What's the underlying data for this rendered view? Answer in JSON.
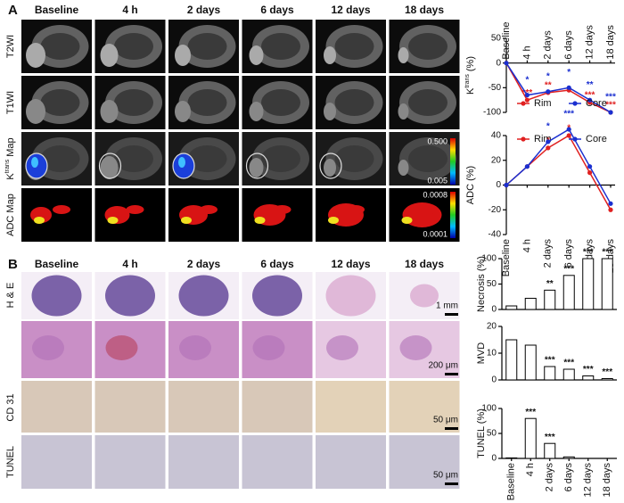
{
  "figure": {
    "panel_a": {
      "letter": "A",
      "columns": [
        "Baseline",
        "4 h",
        "2 days",
        "6 days",
        "12 days",
        "18 days"
      ],
      "rows": [
        {
          "label": "T2WI"
        },
        {
          "label": "T1WI"
        },
        {
          "label": "K",
          "sup": "trans",
          "suffix": "Map"
        },
        {
          "label": "ADC Map"
        }
      ],
      "colorbars": [
        {
          "max": "0.500",
          "min": "0.005"
        },
        {
          "max": "0.0008",
          "min": "0.0001"
        }
      ]
    },
    "panel_b": {
      "letter": "B",
      "columns": [
        "Baseline",
        "4 h",
        "2 days",
        "6 days",
        "12 days",
        "18 days"
      ],
      "rows": [
        "H & E",
        "CD 31",
        "TUNEL"
      ],
      "scale_bars": [
        "1 mm",
        "200 μm",
        "50 μm",
        "50 μm"
      ]
    }
  },
  "chart_data": [
    {
      "type": "line",
      "ylabel": "K",
      "ylabel_sup": "trans",
      "ylabel_unit": "(%)",
      "categories": [
        "Baseline",
        "4 h",
        "2 days",
        "6 days",
        "12 days",
        "18 days"
      ],
      "ylim": [
        -100,
        50
      ],
      "yticks": [
        50,
        0,
        -50,
        -100
      ],
      "legend": "lower",
      "series": [
        {
          "name": "Rim",
          "color": "#e02020",
          "values": [
            0,
            -75,
            -60,
            -55,
            -80,
            -100
          ],
          "stars": [
            null,
            "***",
            "**",
            null,
            "***",
            "***"
          ]
        },
        {
          "name": "Core",
          "color": "#1a2fd0",
          "values": [
            0,
            -65,
            -58,
            -50,
            -75,
            -100
          ],
          "stars": [
            null,
            "*",
            "*",
            "*",
            "**",
            "***"
          ]
        }
      ]
    },
    {
      "type": "line",
      "ylabel": "ADC (%)",
      "categories": [
        "Baseline",
        "4 h",
        "2 days",
        "6 days",
        "12 days",
        "18 days"
      ],
      "ylim": [
        -40,
        40
      ],
      "yticks": [
        40,
        20,
        0,
        -20,
        -40
      ],
      "legend": "upper",
      "series": [
        {
          "name": "Rim",
          "color": "#e02020",
          "values": [
            0,
            15,
            30,
            40,
            10,
            -20
          ],
          "stars": [
            null,
            null,
            "*",
            "*",
            null,
            null
          ]
        },
        {
          "name": "Core",
          "color": "#1a2fd0",
          "values": [
            0,
            15,
            35,
            45,
            15,
            -15
          ],
          "stars": [
            null,
            null,
            "*",
            "***",
            null,
            null
          ]
        }
      ]
    },
    {
      "type": "bar",
      "ylabel": "Necrosis (%)",
      "ylim": [
        0,
        100
      ],
      "yticks": [
        0,
        50,
        100
      ],
      "values": [
        7,
        22,
        38,
        67,
        100,
        100
      ],
      "stars": [
        null,
        null,
        "**",
        "***",
        "***",
        "***"
      ]
    },
    {
      "type": "bar",
      "ylabel": "MVD",
      "ylim": [
        0,
        20
      ],
      "yticks": [
        0,
        10,
        20
      ],
      "values": [
        15,
        13,
        5,
        4,
        1.5,
        0.5
      ],
      "stars": [
        null,
        null,
        "***",
        "***",
        "***",
        "***"
      ]
    },
    {
      "type": "bar",
      "ylabel": "TUNEL (%)",
      "ylim": [
        0,
        100
      ],
      "yticks": [
        0,
        50,
        100
      ],
      "categories": [
        "Baseline",
        "4 h",
        "2 days",
        "6 days",
        "12 days",
        "18 days"
      ],
      "values": [
        1,
        80,
        30,
        3,
        0,
        0
      ],
      "stars": [
        null,
        "***",
        "***",
        null,
        null,
        null
      ]
    }
  ]
}
